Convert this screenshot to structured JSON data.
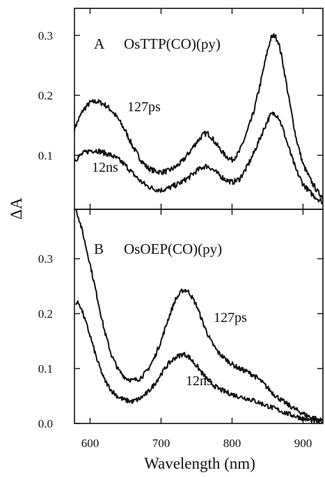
{
  "chart_data": [
    {
      "type": "line",
      "panel_label": "A",
      "title": "OsTTP(CO)(py)",
      "xlabel": "Wavelength (nm)",
      "ylabel": "ΔA",
      "xlim": [
        578,
        928
      ],
      "ylim": [
        0.01,
        0.345
      ],
      "x_ticks": [
        600,
        700,
        800,
        900
      ],
      "y_ticks": [
        0.1,
        0.2,
        0.3
      ],
      "y_tick_labels": [
        "0.1",
        "0.2",
        "0.3"
      ],
      "grid": false,
      "series": [
        {
          "name": "127ps",
          "x": [
            578,
            590,
            600,
            610,
            620,
            630,
            640,
            650,
            660,
            670,
            680,
            690,
            700,
            710,
            720,
            730,
            740,
            750,
            760,
            765,
            770,
            780,
            790,
            800,
            810,
            820,
            830,
            840,
            850,
            855,
            860,
            865,
            870,
            880,
            890,
            900,
            910,
            920,
            928
          ],
          "y": [
            0.145,
            0.175,
            0.188,
            0.19,
            0.185,
            0.175,
            0.16,
            0.14,
            0.115,
            0.095,
            0.08,
            0.074,
            0.072,
            0.074,
            0.08,
            0.09,
            0.105,
            0.122,
            0.135,
            0.137,
            0.132,
            0.115,
            0.1,
            0.092,
            0.105,
            0.135,
            0.17,
            0.22,
            0.275,
            0.296,
            0.3,
            0.29,
            0.265,
            0.195,
            0.13,
            0.085,
            0.06,
            0.04,
            0.03
          ]
        },
        {
          "name": "12ns",
          "x": [
            578,
            590,
            600,
            610,
            620,
            630,
            640,
            650,
            660,
            670,
            680,
            690,
            700,
            710,
            720,
            730,
            740,
            750,
            760,
            765,
            770,
            780,
            790,
            800,
            810,
            820,
            830,
            840,
            850,
            855,
            860,
            865,
            870,
            880,
            890,
            900,
            910,
            920,
            928
          ],
          "y": [
            0.092,
            0.103,
            0.108,
            0.108,
            0.104,
            0.1,
            0.093,
            0.083,
            0.07,
            0.058,
            0.049,
            0.044,
            0.042,
            0.045,
            0.05,
            0.056,
            0.064,
            0.074,
            0.081,
            0.082,
            0.079,
            0.069,
            0.06,
            0.055,
            0.06,
            0.078,
            0.102,
            0.13,
            0.158,
            0.168,
            0.17,
            0.165,
            0.15,
            0.112,
            0.076,
            0.052,
            0.038,
            0.028,
            0.022
          ]
        }
      ]
    },
    {
      "type": "line",
      "panel_label": "B",
      "title": "OsOEP(CO)(py)",
      "xlabel": "Wavelength (nm)",
      "ylabel": "ΔA",
      "xlim": [
        578,
        928
      ],
      "ylim": [
        0.0,
        0.39
      ],
      "x_ticks": [
        600,
        700,
        800,
        900
      ],
      "x_tick_labels": [
        "600",
        "700",
        "800",
        "900"
      ],
      "y_ticks": [
        0.0,
        0.1,
        0.2,
        0.3
      ],
      "y_tick_labels": [
        "0.0",
        "0.1",
        "0.2",
        "0.3"
      ],
      "grid": false,
      "series": [
        {
          "name": "127ps",
          "x": [
            580,
            585,
            590,
            600,
            610,
            620,
            630,
            640,
            650,
            660,
            670,
            680,
            690,
            700,
            710,
            720,
            730,
            735,
            740,
            750,
            760,
            770,
            780,
            790,
            800,
            810,
            820,
            830,
            840,
            850,
            860,
            870,
            880,
            890,
            900,
            910,
            920,
            928
          ],
          "y": [
            0.39,
            0.37,
            0.345,
            0.29,
            0.23,
            0.17,
            0.125,
            0.097,
            0.083,
            0.078,
            0.082,
            0.095,
            0.118,
            0.15,
            0.19,
            0.225,
            0.242,
            0.243,
            0.238,
            0.215,
            0.18,
            0.15,
            0.13,
            0.118,
            0.108,
            0.1,
            0.095,
            0.088,
            0.078,
            0.065,
            0.052,
            0.042,
            0.033,
            0.025,
            0.018,
            0.012,
            0.008,
            0.005
          ]
        },
        {
          "name": "12ns",
          "x": [
            580,
            585,
            590,
            600,
            610,
            620,
            630,
            640,
            650,
            660,
            670,
            680,
            690,
            700,
            710,
            720,
            730,
            735,
            740,
            750,
            760,
            770,
            780,
            790,
            800,
            810,
            820,
            830,
            840,
            850,
            860,
            870,
            880,
            890,
            900,
            910,
            920,
            928
          ],
          "y": [
            0.22,
            0.218,
            0.2,
            0.16,
            0.115,
            0.08,
            0.06,
            0.048,
            0.042,
            0.04,
            0.045,
            0.055,
            0.07,
            0.09,
            0.108,
            0.12,
            0.126,
            0.125,
            0.12,
            0.105,
            0.088,
            0.074,
            0.064,
            0.058,
            0.053,
            0.049,
            0.046,
            0.042,
            0.037,
            0.032,
            0.027,
            0.022,
            0.017,
            0.013,
            0.009,
            0.006,
            0.004,
            0.002
          ]
        }
      ]
    }
  ]
}
